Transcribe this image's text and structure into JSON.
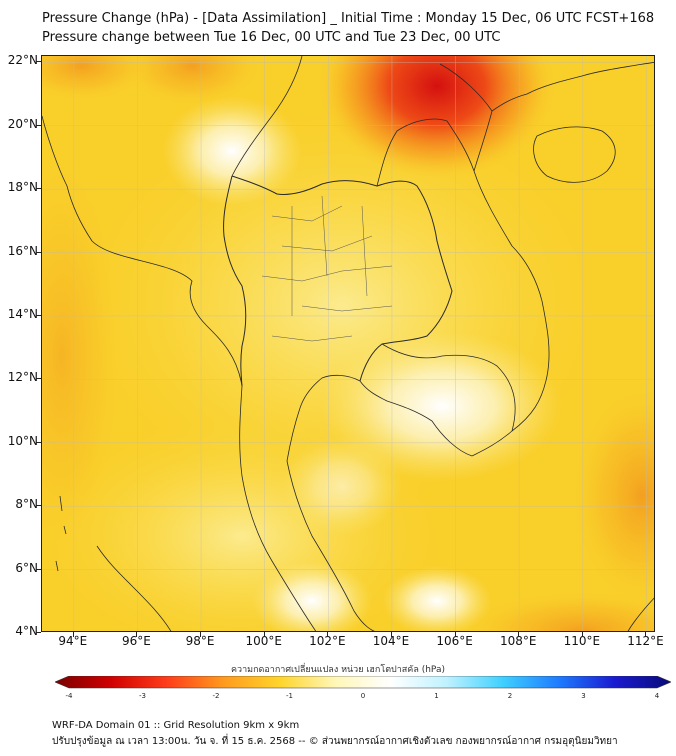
{
  "map": {
    "title": "Pressure Change (hPa) - [Data Assimilation] _ Initial Time : Monday 15 Dec, 06 UTC FCST+168",
    "subtitle": "Pressure change between Tue 16 Dec, 00 UTC and Tue 23 Dec, 00 UTC",
    "variable": "Pressure Change",
    "units": "hPa",
    "projection": "PlateCarree",
    "extent": {
      "lon_min": 93,
      "lon_max": 112.3,
      "lat_min": 4,
      "lat_max": 22.2
    },
    "lat_ticks": [
      "4°N",
      "6°N",
      "8°N",
      "10°N",
      "12°N",
      "14°N",
      "16°N",
      "18°N",
      "20°N",
      "22°N"
    ],
    "lon_ticks": [
      "94°E",
      "96°E",
      "98°E",
      "100°E",
      "102°E",
      "104°E",
      "106°E",
      "108°E",
      "110°E",
      "112°E"
    ],
    "colors": {
      "background_field": "#f9cf2a",
      "negative_strong": "#d81111",
      "negative_mid": "#f5a31f",
      "near_zero": "#fbf6d5",
      "positive": "#1e90ff",
      "boundaries": "#333333"
    },
    "features": [
      "coastlines",
      "country borders",
      "Thailand province borders"
    ]
  },
  "colorbar": {
    "title": "ความกดอากาศเปลี่ยนแปลง หน่วย เฮกโตปาสคัล (hPa)",
    "min": -4,
    "max": 4,
    "ticks": [
      "-4",
      "-3",
      "-2",
      "-1",
      "0",
      "1",
      "2",
      "3",
      "4"
    ],
    "colors": [
      "#7a0000",
      "#d00000",
      "#ff3d1a",
      "#ff9a1f",
      "#ffd42a",
      "#fff7b8",
      "#ffffff",
      "#bff2ff",
      "#3fd0ff",
      "#1e7bff",
      "#1a1ad0",
      "#0a0a7a"
    ]
  },
  "footer": {
    "line1": "WRF-DA Domain 01 :: Grid Resolution 9km x 9km",
    "line2": "ปรับปรุงข้อมูล ณ เวลา 13:00น. วัน จ. ที่ 15 ธ.ค. 2568 -- © ส่วนพยากรณ์อากาศเชิงตัวเลข กองพยากรณ์อากาศ กรมอุตุนิยมวิทยา"
  }
}
